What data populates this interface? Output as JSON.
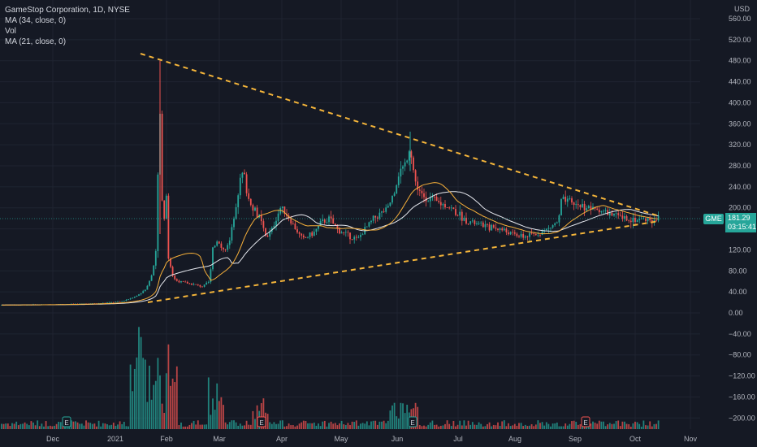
{
  "header": {
    "symbol_line": "GameStop Corporation, 1D, NYSE",
    "ma1_label": "MA (34, close, 0)",
    "vol_label": "Vol",
    "ma2_label": "MA (21, close, 0)"
  },
  "axis": {
    "currency": "USD",
    "y_ticks": [
      "560.00",
      "520.00",
      "480.00",
      "440.00",
      "400.00",
      "360.00",
      "320.00",
      "280.00",
      "240.00",
      "200.00",
      "160.00",
      "120.00",
      "80.00",
      "40.00",
      "0.00",
      "−40.00",
      "−80.00",
      "−120.00",
      "−160.00",
      "−200.00"
    ],
    "y_values": [
      560,
      520,
      480,
      440,
      400,
      360,
      320,
      280,
      240,
      200,
      160,
      120,
      80,
      40,
      0,
      -40,
      -80,
      -120,
      -160,
      -200
    ],
    "x_ticks": [
      "Dec",
      "2021",
      "Feb",
      "Mar",
      "Apr",
      "May",
      "Jun",
      "Jul",
      "Aug",
      "Sep",
      "Oct",
      "Nov"
    ]
  },
  "price_badge": {
    "ticker": "GME",
    "price": "181.29",
    "countdown": "03:15:41",
    "value": 181.29
  },
  "earnings_marker": "E",
  "colors": {
    "background": "#151924",
    "up": "#26a69a",
    "down": "#ef5350",
    "ma34": "#e6e8ee",
    "ma21": "#f7b03a",
    "trendline": "#f5b53a",
    "badge": "#26a69a"
  },
  "chart_data": {
    "type": "candlestick",
    "symbol": "GME",
    "interval": "1D",
    "exchange": "NYSE",
    "ylim": [
      -210,
      590
    ],
    "x_labels": [
      "Dec",
      "2021",
      "Feb",
      "Mar",
      "Apr",
      "May",
      "Jun",
      "Jul",
      "Aug",
      "Sep",
      "Oct",
      "Nov"
    ],
    "monthly_close_approx": [
      {
        "month": "Dec",
        "close": 15
      },
      {
        "month": "Jan",
        "close": 40
      },
      {
        "month": "Feb",
        "close": 300
      },
      {
        "month": "Mar",
        "close": 60
      },
      {
        "month": "Apr",
        "close": 190
      },
      {
        "month": "May",
        "close": 165
      },
      {
        "month": "Jun",
        "close": 220
      },
      {
        "month": "Jul",
        "close": 160
      },
      {
        "month": "Aug",
        "close": 160
      },
      {
        "month": "Sep",
        "close": 200
      },
      {
        "month": "Oct",
        "close": 181
      }
    ],
    "peak_high": 480,
    "last_price": 181.29
  }
}
